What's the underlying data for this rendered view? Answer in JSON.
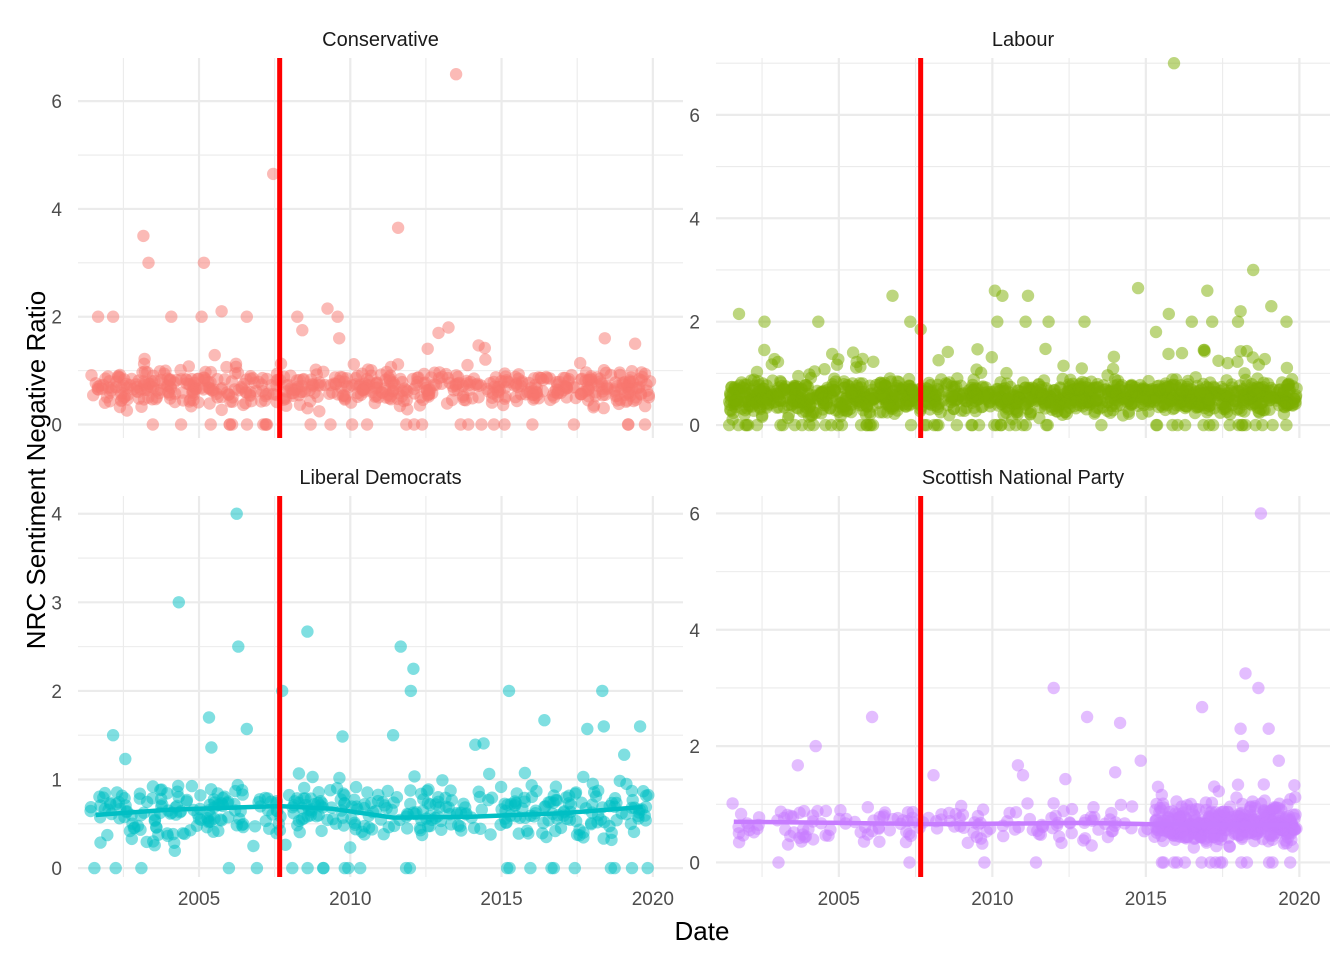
{
  "chart_data": {
    "type": "scatter",
    "layout": "facet-grid-2x2",
    "xlabel": "Date",
    "ylabel": "NRC Sentiment Negative Ratio",
    "x_range": [
      "2001-01-01",
      "2020-12-31"
    ],
    "x_ticks": [
      "2005",
      "2010",
      "2015",
      "2020"
    ],
    "vline": {
      "date": "2007-09-01",
      "color": "#ff0000"
    },
    "grid": true,
    "legend": "none",
    "point_alpha": 0.5,
    "panels": [
      {
        "name": "Conservative",
        "color": "#f8766d",
        "ylim": [
          -0.25,
          6.8
        ],
        "y_ticks": [
          "0",
          "2",
          "4",
          "6"
        ],
        "point_count": 620,
        "base_mean": 0.68,
        "date_span": [
          "2001-06-01",
          "2019-11-30"
        ],
        "smooth": null,
        "outliers": [
          {
            "x": "2013-07-01",
            "y": 6.5
          },
          {
            "x": "2007-06-15",
            "y": 4.65
          },
          {
            "x": "2011-08-01",
            "y": 3.65
          },
          {
            "x": "2003-03-01",
            "y": 3.5
          },
          {
            "x": "2003-05-01",
            "y": 3.0
          },
          {
            "x": "2005-03-01",
            "y": 3.0
          },
          {
            "x": "2009-04-01",
            "y": 2.15
          },
          {
            "x": "2005-10-01",
            "y": 2.1
          },
          {
            "x": "2001-09-01",
            "y": 2.0
          },
          {
            "x": "2002-03-01",
            "y": 2.0
          },
          {
            "x": "2004-02-01",
            "y": 2.0
          },
          {
            "x": "2005-02-01",
            "y": 2.0
          },
          {
            "x": "2006-08-01",
            "y": 2.0
          },
          {
            "x": "2008-04-01",
            "y": 2.0
          },
          {
            "x": "2009-08-01",
            "y": 2.0
          },
          {
            "x": "2008-06-01",
            "y": 1.75
          },
          {
            "x": "2013-04-01",
            "y": 1.8
          },
          {
            "x": "2018-06-01",
            "y": 1.6
          },
          {
            "x": "2009-08-20",
            "y": 1.6
          },
          {
            "x": "2012-12-01",
            "y": 1.7
          },
          {
            "x": "2019-06-01",
            "y": 1.5
          }
        ]
      },
      {
        "name": "Labour",
        "color": "#7cae00",
        "ylim": [
          -0.25,
          7.1
        ],
        "y_ticks": [
          "0",
          "2",
          "4",
          "6"
        ],
        "point_count": 1300,
        "base_mean": 0.55,
        "date_span": [
          "2001-06-01",
          "2019-11-30"
        ],
        "smooth": null,
        "outliers": [
          {
            "x": "2015-12-01",
            "y": 7.0
          },
          {
            "x": "2018-07-01",
            "y": 3.0
          },
          {
            "x": "2010-02-01",
            "y": 2.6
          },
          {
            "x": "2014-10-01",
            "y": 2.65
          },
          {
            "x": "2017-01-01",
            "y": 2.6
          },
          {
            "x": "2006-10-01",
            "y": 2.5
          },
          {
            "x": "2010-05-01",
            "y": 2.5
          },
          {
            "x": "2011-03-01",
            "y": 2.5
          },
          {
            "x": "2019-02-01",
            "y": 2.3
          },
          {
            "x": "2018-02-01",
            "y": 2.2
          },
          {
            "x": "2001-10-01",
            "y": 2.15
          },
          {
            "x": "2015-10-01",
            "y": 2.15
          },
          {
            "x": "2002-08-01",
            "y": 2.0
          },
          {
            "x": "2004-05-01",
            "y": 2.0
          },
          {
            "x": "2007-05-01",
            "y": 2.0
          },
          {
            "x": "2010-03-01",
            "y": 2.0
          },
          {
            "x": "2011-02-01",
            "y": 2.0
          },
          {
            "x": "2011-11-01",
            "y": 2.0
          },
          {
            "x": "2013-01-01",
            "y": 2.0
          },
          {
            "x": "2016-07-01",
            "y": 2.0
          },
          {
            "x": "2017-03-01",
            "y": 2.0
          },
          {
            "x": "2018-01-01",
            "y": 2.0
          },
          {
            "x": "2019-08-01",
            "y": 2.0
          },
          {
            "x": "2015-05-01",
            "y": 1.8
          },
          {
            "x": "2007-09-01",
            "y": 1.85
          }
        ]
      },
      {
        "name": "Liberal Democrats",
        "color": "#00bfc4",
        "ylim": [
          -0.1,
          4.2
        ],
        "y_ticks": [
          "0",
          "1",
          "2",
          "3",
          "4"
        ],
        "point_count": 440,
        "base_mean": 0.63,
        "date_span": [
          "2001-06-01",
          "2019-11-30"
        ],
        "smooth": {
          "x": [
            "2001-08-01",
            "2004-01-01",
            "2007-09-01",
            "2009-06-01",
            "2011-06-01",
            "2014-01-01",
            "2017-01-01",
            "2019-09-01"
          ],
          "y": [
            0.6,
            0.66,
            0.7,
            0.67,
            0.57,
            0.58,
            0.62,
            0.69
          ]
        },
        "outliers": [
          {
            "x": "2006-04-01",
            "y": 4.0
          },
          {
            "x": "2004-05-01",
            "y": 3.0
          },
          {
            "x": "2008-08-01",
            "y": 2.67
          },
          {
            "x": "2006-04-20",
            "y": 2.5
          },
          {
            "x": "2011-09-01",
            "y": 2.5
          },
          {
            "x": "2012-02-01",
            "y": 2.25
          },
          {
            "x": "2007-10-01",
            "y": 2.0
          },
          {
            "x": "2012-01-01",
            "y": 2.0
          },
          {
            "x": "2015-04-01",
            "y": 2.0
          },
          {
            "x": "2018-05-01",
            "y": 2.0
          },
          {
            "x": "2005-05-01",
            "y": 1.7
          },
          {
            "x": "2016-06-01",
            "y": 1.67
          },
          {
            "x": "2018-05-20",
            "y": 1.6
          },
          {
            "x": "2019-08-01",
            "y": 1.6
          },
          {
            "x": "2006-08-01",
            "y": 1.57
          },
          {
            "x": "2017-11-01",
            "y": 1.57
          },
          {
            "x": "2002-03-01",
            "y": 1.5
          },
          {
            "x": "2011-06-01",
            "y": 1.5
          }
        ]
      },
      {
        "name": "Scottish National Party",
        "color": "#c77cff",
        "ylim": [
          -0.25,
          6.3
        ],
        "y_ticks": [
          "0",
          "2",
          "4",
          "6"
        ],
        "point_count": 560,
        "base_mean": 0.65,
        "date_span": [
          "2001-06-01",
          "2019-11-30"
        ],
        "smooth": {
          "x": [
            "2001-08-01",
            "2005-01-01",
            "2008-01-01",
            "2011-01-01",
            "2013-01-01",
            "2015-01-01",
            "2017-01-01",
            "2019-09-01"
          ],
          "y": [
            0.7,
            0.68,
            0.66,
            0.67,
            0.68,
            0.66,
            0.65,
            0.64
          ]
        },
        "outliers": [
          {
            "x": "2018-10-01",
            "y": 6.0
          },
          {
            "x": "2018-04-01",
            "y": 3.25
          },
          {
            "x": "2012-01-01",
            "y": 3.0
          },
          {
            "x": "2018-09-01",
            "y": 3.0
          },
          {
            "x": "2016-11-01",
            "y": 2.67
          },
          {
            "x": "2006-02-01",
            "y": 2.5
          },
          {
            "x": "2013-02-01",
            "y": 2.5
          },
          {
            "x": "2014-03-01",
            "y": 2.4
          },
          {
            "x": "2019-01-01",
            "y": 2.3
          },
          {
            "x": "2018-02-01",
            "y": 2.3
          },
          {
            "x": "2004-04-01",
            "y": 2.0
          },
          {
            "x": "2018-03-01",
            "y": 2.0
          },
          {
            "x": "2019-05-01",
            "y": 1.75
          },
          {
            "x": "2014-11-01",
            "y": 1.75
          },
          {
            "x": "2003-09-01",
            "y": 1.67
          },
          {
            "x": "2010-11-01",
            "y": 1.67
          },
          {
            "x": "2008-02-01",
            "y": 1.5
          },
          {
            "x": "2011-01-01",
            "y": 1.5
          },
          {
            "x": "2014-01-01",
            "y": 1.55
          }
        ]
      }
    ]
  }
}
